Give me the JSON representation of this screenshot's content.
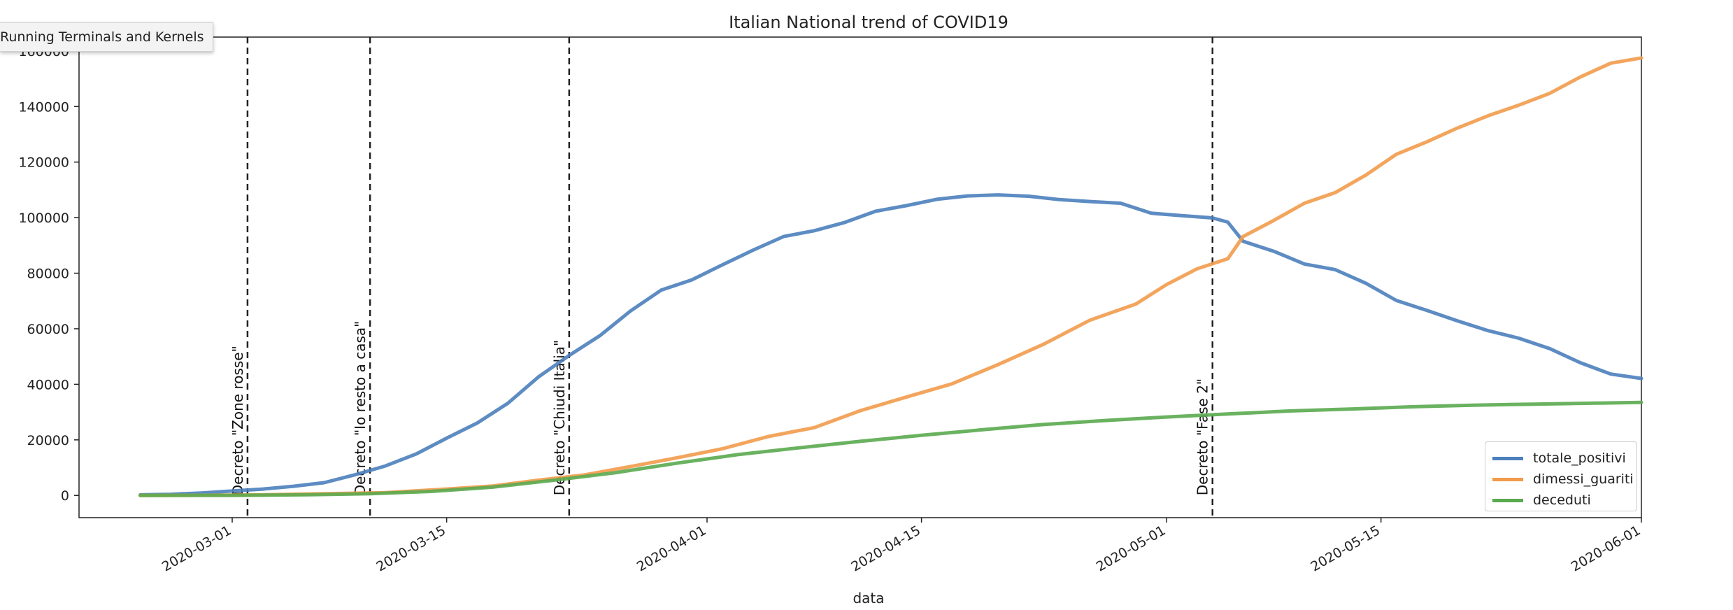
{
  "tooltip": {
    "text": "Running Terminals and Kernels"
  },
  "chart_data": {
    "type": "line",
    "title": "Italian National trend of COVID19",
    "xlabel": "data",
    "ylabel": "",
    "ylim": [
      -8000,
      165000
    ],
    "xlim": [
      "2020-02-20",
      "2020-06-01"
    ],
    "yticks": [
      0,
      20000,
      40000,
      60000,
      80000,
      100000,
      120000,
      140000,
      160000
    ],
    "xticks": [
      "2020-03-01",
      "2020-03-15",
      "2020-04-01",
      "2020-04-15",
      "2020-05-01",
      "2020-05-15",
      "2020-06-01"
    ],
    "legend_position": "lower-right",
    "grid": false,
    "series": [
      {
        "name": "totale_positivi",
        "color": "#4b80bd",
        "points": [
          [
            "2020-02-24",
            200
          ],
          [
            "2020-02-26",
            400
          ],
          [
            "2020-02-28",
            900
          ],
          [
            "2020-03-01",
            1600
          ],
          [
            "2020-03-03",
            2300
          ],
          [
            "2020-03-05",
            3300
          ],
          [
            "2020-03-07",
            4600
          ],
          [
            "2020-03-09",
            7400
          ],
          [
            "2020-03-11",
            10600
          ],
          [
            "2020-03-13",
            14900
          ],
          [
            "2020-03-15",
            20600
          ],
          [
            "2020-03-17",
            26100
          ],
          [
            "2020-03-19",
            33200
          ],
          [
            "2020-03-21",
            42700
          ],
          [
            "2020-03-23",
            50400
          ],
          [
            "2020-03-25",
            57500
          ],
          [
            "2020-03-27",
            66400
          ],
          [
            "2020-03-29",
            73900
          ],
          [
            "2020-03-31",
            77600
          ],
          [
            "2020-04-02",
            83000
          ],
          [
            "2020-04-04",
            88300
          ],
          [
            "2020-04-06",
            93200
          ],
          [
            "2020-04-08",
            95300
          ],
          [
            "2020-04-10",
            98300
          ],
          [
            "2020-04-12",
            102300
          ],
          [
            "2020-04-14",
            104300
          ],
          [
            "2020-04-16",
            106600
          ],
          [
            "2020-04-18",
            107800
          ],
          [
            "2020-04-20",
            108200
          ],
          [
            "2020-04-22",
            107700
          ],
          [
            "2020-04-24",
            106500
          ],
          [
            "2020-04-26",
            105800
          ],
          [
            "2020-04-28",
            105200
          ],
          [
            "2020-04-30",
            101600
          ],
          [
            "2020-05-02",
            100700
          ],
          [
            "2020-05-04",
            99900
          ],
          [
            "2020-05-05",
            98400
          ],
          [
            "2020-05-06",
            91500
          ],
          [
            "2020-05-08",
            87900
          ],
          [
            "2020-05-10",
            83300
          ],
          [
            "2020-05-12",
            81300
          ],
          [
            "2020-05-14",
            76400
          ],
          [
            "2020-05-16",
            70200
          ],
          [
            "2020-05-18",
            66600
          ],
          [
            "2020-05-20",
            62800
          ],
          [
            "2020-05-22",
            59300
          ],
          [
            "2020-05-24",
            56600
          ],
          [
            "2020-05-26",
            52900
          ],
          [
            "2020-05-28",
            47800
          ],
          [
            "2020-05-30",
            43700
          ],
          [
            "2020-06-01",
            42100
          ]
        ]
      },
      {
        "name": "dimessi_guariti",
        "color": "#f29b4b",
        "points": [
          [
            "2020-02-24",
            0
          ],
          [
            "2020-02-28",
            50
          ],
          [
            "2020-03-03",
            200
          ],
          [
            "2020-03-07",
            600
          ],
          [
            "2020-03-11",
            1000
          ],
          [
            "2020-03-15",
            2300
          ],
          [
            "2020-03-18",
            3400
          ],
          [
            "2020-03-21",
            5500
          ],
          [
            "2020-03-24",
            7400
          ],
          [
            "2020-03-27",
            10400
          ],
          [
            "2020-03-30",
            13500
          ],
          [
            "2020-04-02",
            16800
          ],
          [
            "2020-04-05",
            21200
          ],
          [
            "2020-04-08",
            24400
          ],
          [
            "2020-04-11",
            30500
          ],
          [
            "2020-04-14",
            35400
          ],
          [
            "2020-04-17",
            40200
          ],
          [
            "2020-04-20",
            47100
          ],
          [
            "2020-04-23",
            54500
          ],
          [
            "2020-04-26",
            63100
          ],
          [
            "2020-04-29",
            68900
          ],
          [
            "2020-05-01",
            75900
          ],
          [
            "2020-05-03",
            81600
          ],
          [
            "2020-05-05",
            85200
          ],
          [
            "2020-05-06",
            93200
          ],
          [
            "2020-05-08",
            99000
          ],
          [
            "2020-05-10",
            105200
          ],
          [
            "2020-05-12",
            109000
          ],
          [
            "2020-05-14",
            115300
          ],
          [
            "2020-05-16",
            122800
          ],
          [
            "2020-05-18",
            127300
          ],
          [
            "2020-05-20",
            132300
          ],
          [
            "2020-05-22",
            136700
          ],
          [
            "2020-05-24",
            140500
          ],
          [
            "2020-05-26",
            144700
          ],
          [
            "2020-05-28",
            150600
          ],
          [
            "2020-05-30",
            155600
          ],
          [
            "2020-06-01",
            157500
          ]
        ]
      },
      {
        "name": "deceduti",
        "color": "#5aaa4f",
        "points": [
          [
            "2020-02-24",
            7
          ],
          [
            "2020-03-01",
            34
          ],
          [
            "2020-03-06",
            233
          ],
          [
            "2020-03-10",
            631
          ],
          [
            "2020-03-14",
            1441
          ],
          [
            "2020-03-18",
            2978
          ],
          [
            "2020-03-22",
            5476
          ],
          [
            "2020-03-26",
            8165
          ],
          [
            "2020-03-30",
            11591
          ],
          [
            "2020-04-03",
            14681
          ],
          [
            "2020-04-07",
            17127
          ],
          [
            "2020-04-11",
            19468
          ],
          [
            "2020-04-15",
            21645
          ],
          [
            "2020-04-19",
            23660
          ],
          [
            "2020-04-23",
            25549
          ],
          [
            "2020-04-27",
            26977
          ],
          [
            "2020-05-01",
            28236
          ],
          [
            "2020-05-05",
            29315
          ],
          [
            "2020-05-09",
            30395
          ],
          [
            "2020-05-13",
            31106
          ],
          [
            "2020-05-17",
            31908
          ],
          [
            "2020-05-21",
            32486
          ],
          [
            "2020-05-25",
            32877
          ],
          [
            "2020-05-29",
            33229
          ],
          [
            "2020-06-01",
            33475
          ]
        ]
      }
    ],
    "annotations": [
      {
        "date": "2020-03-02",
        "label": "Decreto \"Zone rosse\""
      },
      {
        "date": "2020-03-10",
        "label": "Decreto \"Io resto a casa\""
      },
      {
        "date": "2020-03-23",
        "label": "Decreto \"Chiudi Italia\""
      },
      {
        "date": "2020-05-04",
        "label": "Decreto \"Fase 2\""
      }
    ]
  }
}
